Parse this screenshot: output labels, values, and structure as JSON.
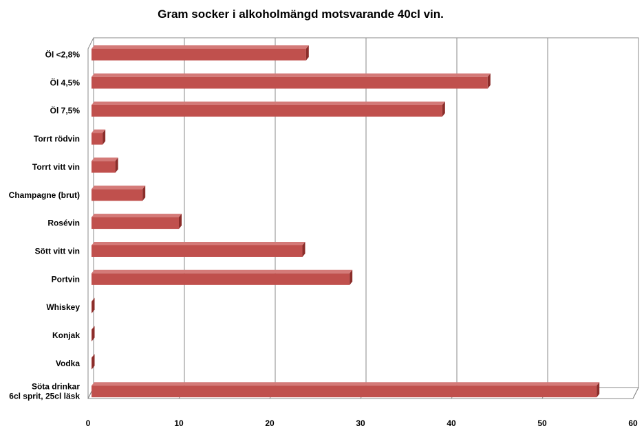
{
  "chart_data": {
    "type": "bar",
    "orientation": "horizontal",
    "style": "3d",
    "title": "Gram socker  i alkoholmängd  motsvarande  40cl vin.",
    "xlabel": "",
    "ylabel": "",
    "xlim": [
      0,
      60
    ],
    "ticks": [
      "0",
      "10",
      "20",
      "30",
      "40",
      "50",
      "60"
    ],
    "grid": true,
    "legend": "none",
    "bar_color": "#c0504d",
    "categories": [
      [
        "Öl <2,8%"
      ],
      [
        "Öl 4,5%"
      ],
      [
        "Öl 7,5%"
      ],
      [
        "Torrt rödvin"
      ],
      [
        "Torrt vitt vin"
      ],
      [
        "Champagne (brut)"
      ],
      [
        "Rosévin"
      ],
      [
        "Sött vitt vin"
      ],
      [
        "Portvin"
      ],
      [
        "Whiskey"
      ],
      [
        "Konjak"
      ],
      [
        "Vodka"
      ],
      [
        "Söta drinkar",
        "6cl sprit, 25cl läsk"
      ]
    ],
    "values": [
      24,
      44,
      39,
      1.6,
      3,
      6,
      10,
      23.6,
      28.8,
      0,
      0,
      0,
      56
    ]
  }
}
